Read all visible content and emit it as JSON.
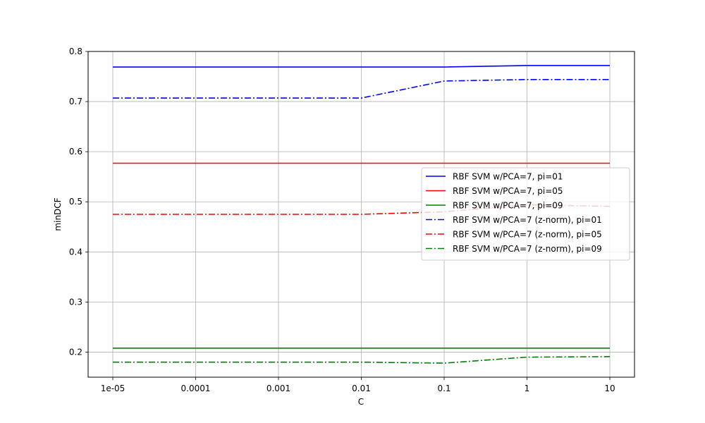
{
  "chart_data": {
    "type": "line",
    "xlabel": "C",
    "ylabel": "minDCF",
    "x": [
      "1e-05",
      "0.0001",
      "0.001",
      "0.01",
      "0.1",
      "1",
      "10"
    ],
    "x_scale": "categorical",
    "ylim": [
      0.15,
      0.8
    ],
    "yticks": [
      "0.2",
      "0.3",
      "0.4",
      "0.5",
      "0.6",
      "0.7",
      "0.8"
    ],
    "grid": true,
    "legend_position": "center-right",
    "series": [
      {
        "name": "RBF SVM w/PCA=7, pi=01",
        "color": "#0000ff",
        "style": "solid",
        "values": [
          0.769,
          0.769,
          0.769,
          0.769,
          0.769,
          0.772,
          0.772
        ]
      },
      {
        "name": "RBF SVM w/PCA=7, pi=05",
        "color": "#ff0000",
        "style": "solid",
        "values": [
          0.577,
          0.577,
          0.577,
          0.577,
          0.577,
          0.577,
          0.577
        ]
      },
      {
        "name": "RBF SVM w/PCA=7, pi=09",
        "color": "#008000",
        "style": "solid",
        "values": [
          0.208,
          0.208,
          0.208,
          0.208,
          0.208,
          0.208,
          0.208
        ]
      },
      {
        "name": "RBF SVM w/PCA=7 (z-norm), pi=01",
        "color": "#0000ff",
        "style": "dashdot",
        "values": [
          0.707,
          0.707,
          0.707,
          0.707,
          0.741,
          0.744,
          0.744
        ]
      },
      {
        "name": "RBF SVM w/PCA=7 (z-norm), pi=05",
        "color": "#ff0000",
        "style": "dashdot",
        "values": [
          0.475,
          0.475,
          0.475,
          0.475,
          0.48,
          0.494,
          0.491
        ]
      },
      {
        "name": "RBF SVM w/PCA=7 (z-norm), pi=09",
        "color": "#008000",
        "style": "dashdot",
        "values": [
          0.18,
          0.18,
          0.18,
          0.18,
          0.178,
          0.19,
          0.191
        ]
      }
    ]
  }
}
